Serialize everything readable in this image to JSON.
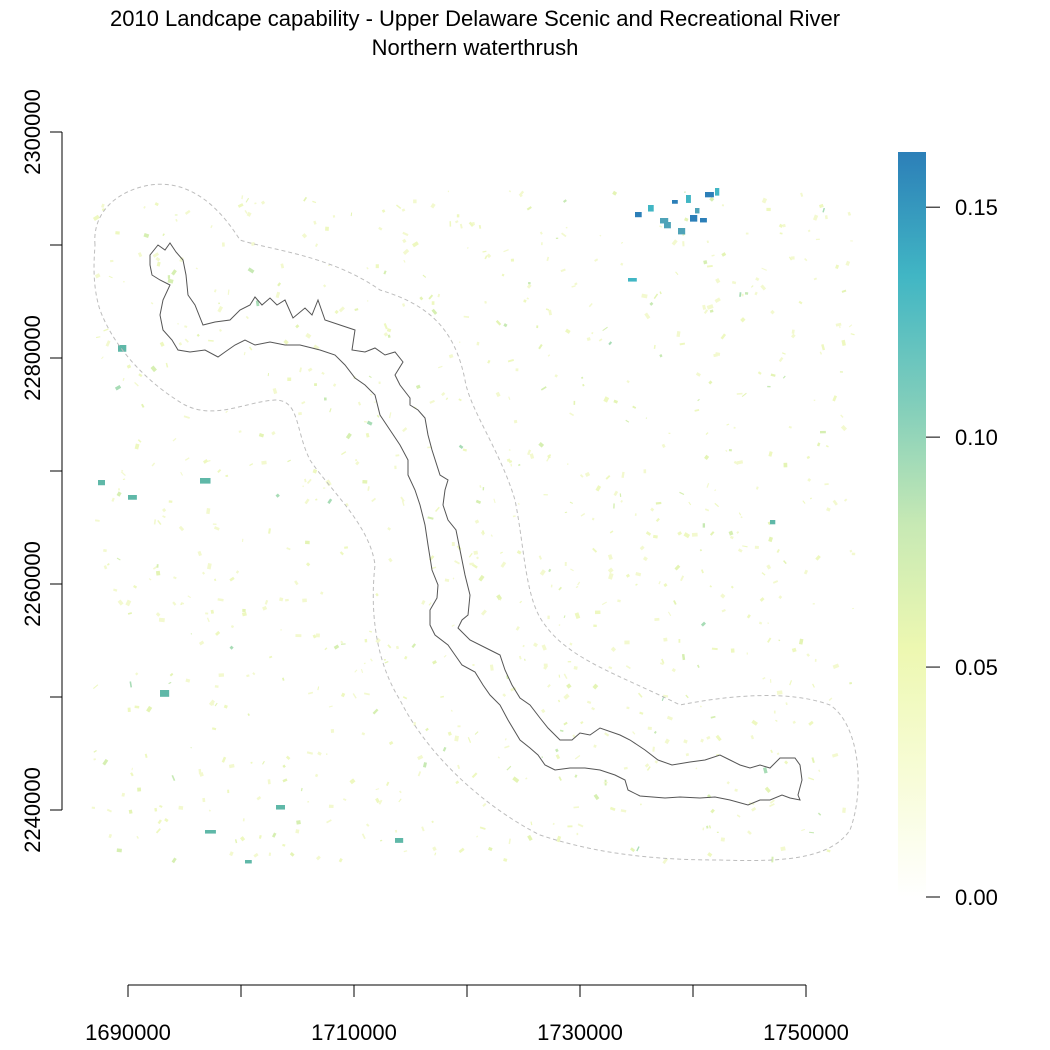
{
  "title": "2010 Landcape capability - Upper Delaware Scenic and Recreational River",
  "subtitle": "Northern waterthrush",
  "chart_data": {
    "type": "heatmap",
    "title": "2010 Landcape capability - Upper Delaware Scenic and Recreational River",
    "subtitle": "Northern waterthrush",
    "x_ticks": [
      "1690000",
      "1710000",
      "1730000",
      "1750000"
    ],
    "x_tick_values": [
      1690000,
      1700000,
      1710000,
      1720000,
      1730000,
      1740000,
      1750000
    ],
    "y_ticks": [
      "2240000",
      "2260000",
      "2280000",
      "2300000"
    ],
    "y_tick_values": [
      2240000,
      2250000,
      2260000,
      2270000,
      2280000,
      2290000,
      2300000
    ],
    "xlim": [
      1690000,
      1750000
    ],
    "ylim": [
      2240000,
      2300000
    ],
    "legend": {
      "labels": [
        "0.00",
        "0.05",
        "0.10",
        "0.15"
      ],
      "values": [
        0.0,
        0.05,
        0.1,
        0.15
      ],
      "range": [
        0.0,
        0.162
      ],
      "placement": "right",
      "colors": [
        "#ffffff",
        "#f7fcd6",
        "#edf8b1",
        "#c7e9b4",
        "#7fcdbb",
        "#41b6c4",
        "#2c7fb8"
      ]
    },
    "layers": [
      "capability raster",
      "river boundary (solid)",
      "buffer boundary (dashed)"
    ]
  }
}
